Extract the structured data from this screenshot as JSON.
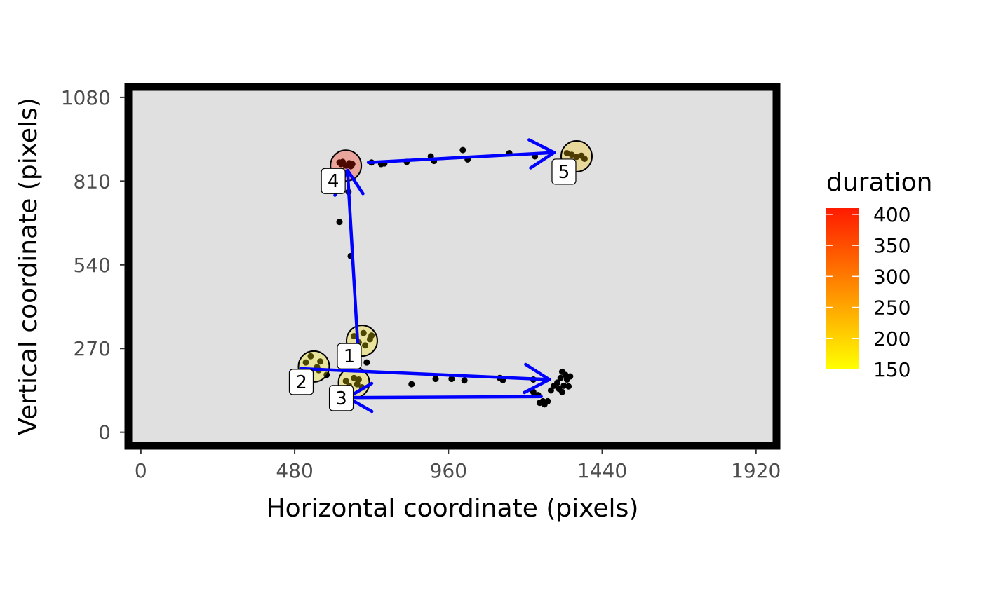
{
  "chart_data": {
    "type": "scatter",
    "xlabel": "Horizontal coordinate (pixels)",
    "ylabel": "Vertical coordinate (pixels)",
    "xlim": [
      -50,
      1995
    ],
    "ylim": [
      -55,
      1125
    ],
    "xticks": [
      0,
      480,
      960,
      1440,
      1920
    ],
    "yticks": [
      0,
      270,
      540,
      810,
      1080
    ],
    "panel_background": "#e0e0e0",
    "grid": false,
    "legend": {
      "title": "duration",
      "position": "right",
      "type": "colorbar",
      "min": 150,
      "max": 410,
      "labels": [
        400,
        350,
        300,
        250,
        200,
        150
      ],
      "low_color": "#ffff00",
      "high_color": "#ff1a00"
    },
    "fixations": [
      {
        "label": "1",
        "x": 690,
        "y": 295,
        "duration": 175
      },
      {
        "label": "2",
        "x": 540,
        "y": 212,
        "duration": 170
      },
      {
        "label": "3",
        "x": 665,
        "y": 160,
        "duration": 180
      },
      {
        "label": "4",
        "x": 640,
        "y": 860,
        "duration": 405
      },
      {
        "label": "5",
        "x": 1360,
        "y": 890,
        "duration": 215
      }
    ],
    "saccades": [
      {
        "from_x": 680,
        "from_y": 230,
        "to_x": 645,
        "to_y": 845
      },
      {
        "from_x": 500,
        "from_y": 205,
        "to_x": 1275,
        "to_y": 170
      },
      {
        "from_x": 1250,
        "from_y": 115,
        "to_x": 645,
        "to_y": 112
      },
      {
        "from_x": 710,
        "from_y": 870,
        "to_x": 1290,
        "to_y": 902
      }
    ],
    "samples": [
      {
        "x": 620,
        "y": 870
      },
      {
        "x": 625,
        "y": 865
      },
      {
        "x": 630,
        "y": 872
      },
      {
        "x": 640,
        "y": 860
      },
      {
        "x": 650,
        "y": 868
      },
      {
        "x": 655,
        "y": 858
      },
      {
        "x": 660,
        "y": 865
      },
      {
        "x": 648,
        "y": 775
      },
      {
        "x": 620,
        "y": 678
      },
      {
        "x": 655,
        "y": 568
      },
      {
        "x": 720,
        "y": 870
      },
      {
        "x": 750,
        "y": 865
      },
      {
        "x": 760,
        "y": 867
      },
      {
        "x": 830,
        "y": 872
      },
      {
        "x": 905,
        "y": 890
      },
      {
        "x": 915,
        "y": 875
      },
      {
        "x": 1005,
        "y": 910
      },
      {
        "x": 1020,
        "y": 880
      },
      {
        "x": 1150,
        "y": 900
      },
      {
        "x": 1230,
        "y": 890
      },
      {
        "x": 1330,
        "y": 900
      },
      {
        "x": 1345,
        "y": 895
      },
      {
        "x": 1360,
        "y": 888
      },
      {
        "x": 1375,
        "y": 892
      },
      {
        "x": 1385,
        "y": 882
      },
      {
        "x": 665,
        "y": 310
      },
      {
        "x": 680,
        "y": 290
      },
      {
        "x": 695,
        "y": 320
      },
      {
        "x": 700,
        "y": 280
      },
      {
        "x": 715,
        "y": 300
      },
      {
        "x": 720,
        "y": 312
      },
      {
        "x": 705,
        "y": 225
      },
      {
        "x": 515,
        "y": 225
      },
      {
        "x": 530,
        "y": 245
      },
      {
        "x": 550,
        "y": 210
      },
      {
        "x": 555,
        "y": 200
      },
      {
        "x": 560,
        "y": 228
      },
      {
        "x": 580,
        "y": 185
      },
      {
        "x": 640,
        "y": 165
      },
      {
        "x": 650,
        "y": 150
      },
      {
        "x": 665,
        "y": 175
      },
      {
        "x": 675,
        "y": 155
      },
      {
        "x": 680,
        "y": 170
      },
      {
        "x": 690,
        "y": 145
      },
      {
        "x": 845,
        "y": 155
      },
      {
        "x": 920,
        "y": 172
      },
      {
        "x": 970,
        "y": 172
      },
      {
        "x": 1010,
        "y": 167
      },
      {
        "x": 1120,
        "y": 175
      },
      {
        "x": 1130,
        "y": 168
      },
      {
        "x": 1225,
        "y": 170
      },
      {
        "x": 1225,
        "y": 130
      },
      {
        "x": 1240,
        "y": 120
      },
      {
        "x": 1245,
        "y": 95
      },
      {
        "x": 1255,
        "y": 100
      },
      {
        "x": 1260,
        "y": 90
      },
      {
        "x": 1270,
        "y": 100
      },
      {
        "x": 1280,
        "y": 135
      },
      {
        "x": 1290,
        "y": 150
      },
      {
        "x": 1300,
        "y": 160
      },
      {
        "x": 1305,
        "y": 140
      },
      {
        "x": 1310,
        "y": 175
      },
      {
        "x": 1315,
        "y": 130
      },
      {
        "x": 1320,
        "y": 150
      },
      {
        "x": 1325,
        "y": 185
      },
      {
        "x": 1330,
        "y": 170
      },
      {
        "x": 1335,
        "y": 148
      },
      {
        "x": 1340,
        "y": 180
      },
      {
        "x": 1315,
        "y": 195
      }
    ]
  }
}
